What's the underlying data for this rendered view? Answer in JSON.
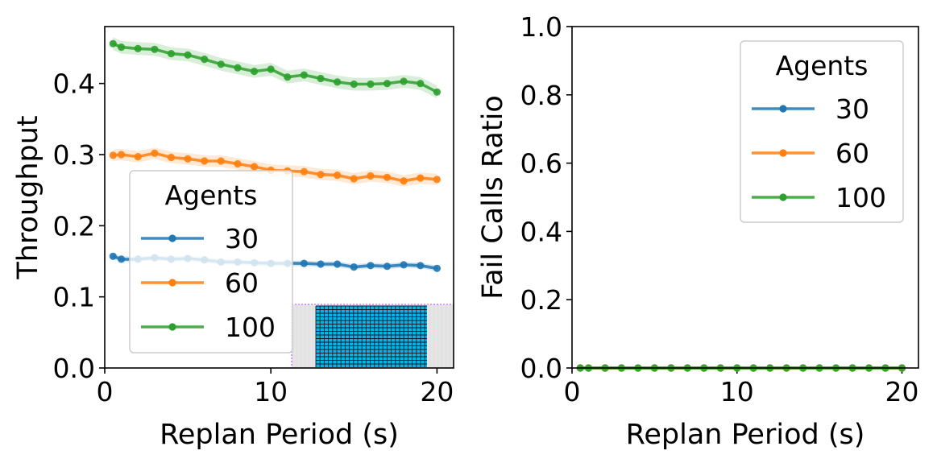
{
  "colors": {
    "s30": "#1f77b4",
    "s60": "#ff7f0e",
    "s100": "#2ca02c",
    "map_fill": "#00b7e8",
    "map_grid": "#1a1a2e"
  },
  "chart_data": [
    {
      "type": "line",
      "xlabel": "Replan Period (s)",
      "ylabel": "Throughput",
      "xlim": [
        0,
        21
      ],
      "ylim": [
        0,
        0.48
      ],
      "xticks": [
        {
          "v": 0,
          "label": "0"
        },
        {
          "v": 10,
          "label": "10"
        },
        {
          "v": 20,
          "label": "20"
        }
      ],
      "yticks": [
        {
          "v": 0,
          "label": "0.0"
        },
        {
          "v": 0.1,
          "label": "0.1"
        },
        {
          "v": 0.2,
          "label": "0.2"
        },
        {
          "v": 0.3,
          "label": "0.3"
        },
        {
          "v": 0.4,
          "label": "0.4"
        }
      ],
      "legend_title": "Agents",
      "legend_position": "lower-left",
      "x": [
        0.5,
        1,
        2,
        3,
        4,
        5,
        6,
        7,
        8,
        9,
        10,
        11,
        12,
        13,
        14,
        15,
        16,
        17,
        18,
        19,
        20
      ],
      "series": [
        {
          "name": "30",
          "color_key": "s30",
          "values": [
            0.157,
            0.153,
            0.153,
            0.155,
            0.153,
            0.154,
            0.152,
            0.149,
            0.149,
            0.148,
            0.147,
            0.147,
            0.147,
            0.146,
            0.146,
            0.142,
            0.144,
            0.143,
            0.145,
            0.144,
            0.14
          ],
          "band": 0.004
        },
        {
          "name": "60",
          "color_key": "s60",
          "values": [
            0.299,
            0.3,
            0.297,
            0.302,
            0.296,
            0.294,
            0.291,
            0.291,
            0.287,
            0.283,
            0.278,
            0.277,
            0.276,
            0.272,
            0.271,
            0.266,
            0.27,
            0.268,
            0.263,
            0.267,
            0.265
          ],
          "band": 0.008
        },
        {
          "name": "100",
          "color_key": "s100",
          "values": [
            0.456,
            0.451,
            0.449,
            0.448,
            0.442,
            0.44,
            0.434,
            0.427,
            0.422,
            0.417,
            0.42,
            0.409,
            0.412,
            0.407,
            0.402,
            0.399,
            0.399,
            0.4,
            0.403,
            0.4,
            0.388
          ],
          "band": 0.009
        }
      ]
    },
    {
      "type": "line",
      "xlabel": "Replan Period (s)",
      "ylabel": "Fail Calls Ratio",
      "xlim": [
        0,
        21
      ],
      "ylim": [
        0,
        1.0
      ],
      "xticks": [
        {
          "v": 0,
          "label": "0"
        },
        {
          "v": 10,
          "label": "10"
        },
        {
          "v": 20,
          "label": "20"
        }
      ],
      "yticks": [
        {
          "v": 0,
          "label": "0.0"
        },
        {
          "v": 0.2,
          "label": "0.2"
        },
        {
          "v": 0.4,
          "label": "0.4"
        },
        {
          "v": 0.6,
          "label": "0.6"
        },
        {
          "v": 0.8,
          "label": "0.8"
        },
        {
          "v": 1.0,
          "label": "1.0"
        }
      ],
      "legend_title": "Agents",
      "legend_position": "upper-right",
      "x": [
        0.5,
        1,
        2,
        3,
        4,
        5,
        6,
        7,
        8,
        9,
        10,
        11,
        12,
        13,
        14,
        15,
        16,
        17,
        18,
        19,
        20
      ],
      "series": [
        {
          "name": "30",
          "color_key": "s30",
          "values": [
            0,
            0,
            0,
            0,
            0,
            0,
            0,
            0,
            0,
            0,
            0,
            0,
            0,
            0,
            0,
            0,
            0,
            0,
            0,
            0,
            0
          ],
          "band": 0
        },
        {
          "name": "60",
          "color_key": "s60",
          "values": [
            0,
            0,
            0,
            0,
            0,
            0,
            0,
            0,
            0,
            0,
            0,
            0,
            0,
            0,
            0,
            0,
            0,
            0,
            0,
            0,
            0
          ],
          "band": 0
        },
        {
          "name": "100",
          "color_key": "s100",
          "values": [
            0,
            0,
            0,
            0,
            0,
            0,
            0,
            0,
            0,
            0,
            0,
            0,
            0,
            0,
            0,
            0,
            0,
            0,
            0,
            0,
            0
          ],
          "band": 0
        }
      ]
    }
  ]
}
